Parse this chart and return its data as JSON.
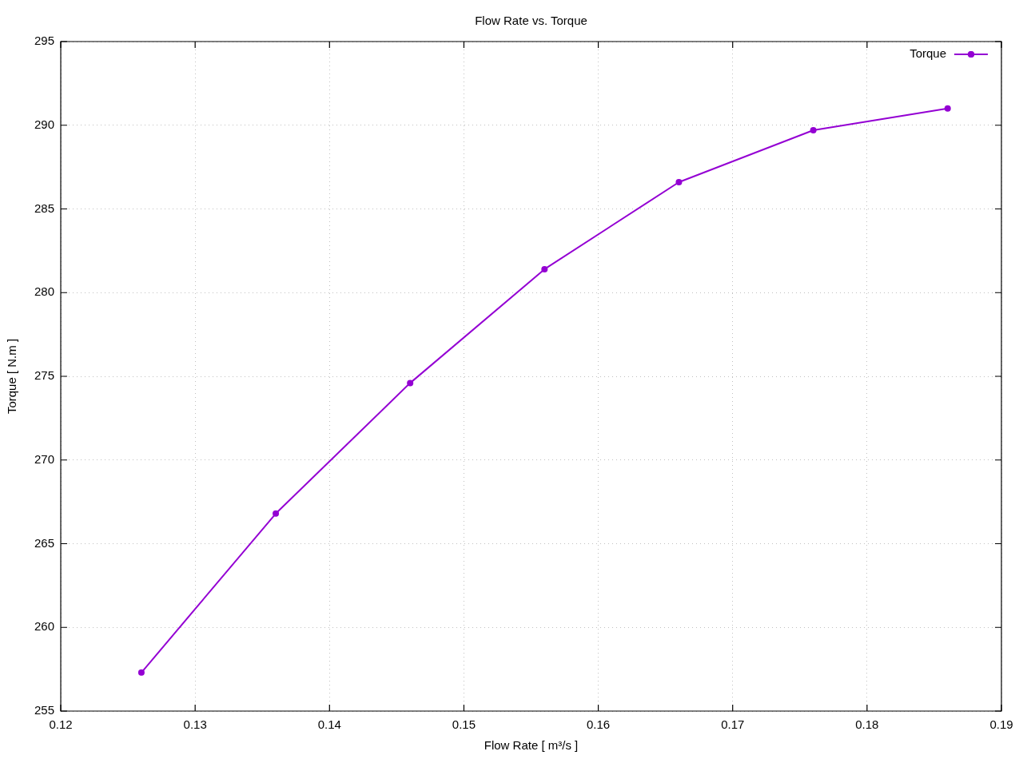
{
  "chart_data": {
    "type": "line",
    "title": "Flow Rate vs. Torque",
    "xlabel": "Flow Rate [ m³/s ]",
    "ylabel": "Torque [ N.m ]",
    "x": [
      0.126,
      0.136,
      0.146,
      0.156,
      0.166,
      0.176,
      0.186
    ],
    "series": [
      {
        "name": "Torque",
        "color": "#9400d3",
        "values": [
          257.3,
          266.8,
          274.6,
          281.4,
          286.6,
          289.7,
          291.0
        ]
      }
    ],
    "xlim": [
      0.12,
      0.19
    ],
    "ylim": [
      255,
      295
    ],
    "xticks": [
      0.12,
      0.13,
      0.14,
      0.15,
      0.16,
      0.17,
      0.18,
      0.19
    ],
    "yticks": [
      255,
      260,
      265,
      270,
      275,
      280,
      285,
      290,
      295
    ],
    "grid": true,
    "legend": "top right",
    "marker": "circle",
    "line_style": "solid"
  }
}
